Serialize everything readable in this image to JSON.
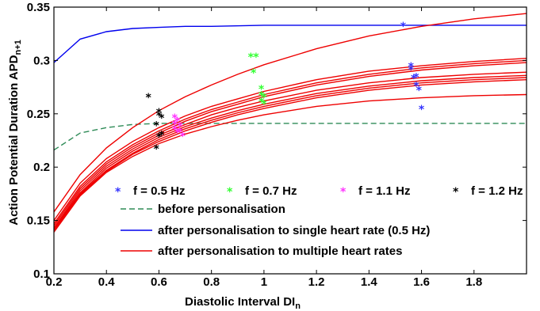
{
  "chart_data": {
    "type": "scatter",
    "xlabel": "Diastolic Interval DI",
    "xlabel_sub": "n",
    "ylabel": "Action Potential Duration APD",
    "ylabel_sub": "n+1",
    "xlim": [
      0.2,
      2.0
    ],
    "ylim": [
      0.1,
      0.35
    ],
    "x_ticks": [
      "0.2",
      "0.4",
      "0.6",
      "0.8",
      "1",
      "1.2",
      "1.4",
      "1.6",
      "1.8"
    ],
    "y_ticks": [
      "0.1",
      "0.15",
      "0.2",
      "0.25",
      "0.3",
      "0.35"
    ],
    "grid": false,
    "legend_position": "bottom-right",
    "scatter_series": [
      {
        "name": "f = 0.5 Hz",
        "color": "#3333ff",
        "points": [
          [
            1.53,
            0.333
          ],
          [
            1.56,
            0.295
          ],
          [
            1.56,
            0.292
          ],
          [
            1.57,
            0.284
          ],
          [
            1.58,
            0.285
          ],
          [
            1.58,
            0.277
          ],
          [
            1.59,
            0.273
          ],
          [
            1.6,
            0.255
          ]
        ]
      },
      {
        "name": "f = 0.7 Hz",
        "color": "#33ff33",
        "points": [
          [
            0.95,
            0.304
          ],
          [
            0.97,
            0.304
          ],
          [
            0.96,
            0.289
          ],
          [
            0.99,
            0.274
          ],
          [
            0.99,
            0.268
          ],
          [
            1.0,
            0.266
          ],
          [
            0.99,
            0.262
          ],
          [
            1.0,
            0.26
          ]
        ]
      },
      {
        "name": "f = 1.1 Hz",
        "color": "#ff33ff",
        "points": [
          [
            0.66,
            0.247
          ],
          [
            0.67,
            0.244
          ],
          [
            0.66,
            0.241
          ],
          [
            0.68,
            0.239
          ],
          [
            0.66,
            0.236
          ],
          [
            0.68,
            0.234
          ],
          [
            0.67,
            0.233
          ],
          [
            0.69,
            0.23
          ]
        ]
      },
      {
        "name": "f = 1.2 Hz",
        "color": "#000000",
        "points": [
          [
            0.56,
            0.266
          ],
          [
            0.6,
            0.252
          ],
          [
            0.6,
            0.249
          ],
          [
            0.61,
            0.247
          ],
          [
            0.59,
            0.24
          ],
          [
            0.61,
            0.231
          ],
          [
            0.6,
            0.229
          ],
          [
            0.59,
            0.218
          ]
        ]
      }
    ],
    "line_series": [
      {
        "name": "before personalisation",
        "color": "#2e8b57",
        "dash": true,
        "x": [
          0.2,
          0.3,
          0.4,
          0.5,
          0.6,
          0.7,
          0.8,
          1.0,
          1.2,
          1.4,
          1.6,
          1.8,
          2.0
        ],
        "y": [
          0.216,
          0.232,
          0.237,
          0.24,
          0.241,
          0.241,
          0.241,
          0.241,
          0.241,
          0.241,
          0.241,
          0.241,
          0.241
        ]
      },
      {
        "name": "after personalisation to single heart rate (0.5 Hz)",
        "color": "#0000ee",
        "x": [
          0.2,
          0.3,
          0.4,
          0.5,
          0.6,
          0.7,
          0.8,
          1.0,
          1.2,
          1.4,
          1.6,
          1.8,
          2.0
        ],
        "y": [
          0.298,
          0.32,
          0.327,
          0.33,
          0.331,
          0.332,
          0.332,
          0.333,
          0.333,
          0.333,
          0.333,
          0.333,
          0.333
        ]
      },
      {
        "name": "after personalisation to multiple heart rates",
        "color": "#ee0000",
        "x": [
          0.2,
          0.3,
          0.4,
          0.5,
          0.6,
          0.7,
          0.8,
          0.9,
          1.0,
          1.2,
          1.4,
          1.6,
          1.8,
          2.0
        ],
        "curves": [
          [
            0.158,
            0.193,
            0.218,
            0.237,
            0.253,
            0.266,
            0.277,
            0.287,
            0.296,
            0.311,
            0.323,
            0.332,
            0.339,
            0.344
          ],
          [
            0.15,
            0.185,
            0.208,
            0.224,
            0.237,
            0.248,
            0.257,
            0.264,
            0.271,
            0.282,
            0.29,
            0.295,
            0.299,
            0.302
          ],
          [
            0.147,
            0.182,
            0.205,
            0.221,
            0.234,
            0.245,
            0.254,
            0.261,
            0.268,
            0.279,
            0.287,
            0.293,
            0.297,
            0.3
          ],
          [
            0.145,
            0.18,
            0.203,
            0.219,
            0.232,
            0.243,
            0.252,
            0.259,
            0.266,
            0.277,
            0.285,
            0.291,
            0.295,
            0.298
          ],
          [
            0.143,
            0.178,
            0.201,
            0.217,
            0.23,
            0.24,
            0.249,
            0.256,
            0.262,
            0.272,
            0.279,
            0.284,
            0.287,
            0.289
          ],
          [
            0.142,
            0.176,
            0.199,
            0.215,
            0.228,
            0.238,
            0.246,
            0.253,
            0.259,
            0.269,
            0.276,
            0.281,
            0.284,
            0.286
          ],
          [
            0.141,
            0.175,
            0.197,
            0.213,
            0.226,
            0.236,
            0.244,
            0.251,
            0.257,
            0.267,
            0.274,
            0.279,
            0.282,
            0.284
          ],
          [
            0.14,
            0.174,
            0.196,
            0.212,
            0.224,
            0.234,
            0.242,
            0.249,
            0.255,
            0.265,
            0.272,
            0.277,
            0.28,
            0.282
          ],
          [
            0.139,
            0.173,
            0.195,
            0.21,
            0.222,
            0.231,
            0.238,
            0.244,
            0.249,
            0.257,
            0.262,
            0.265,
            0.267,
            0.268
          ]
        ]
      }
    ]
  }
}
